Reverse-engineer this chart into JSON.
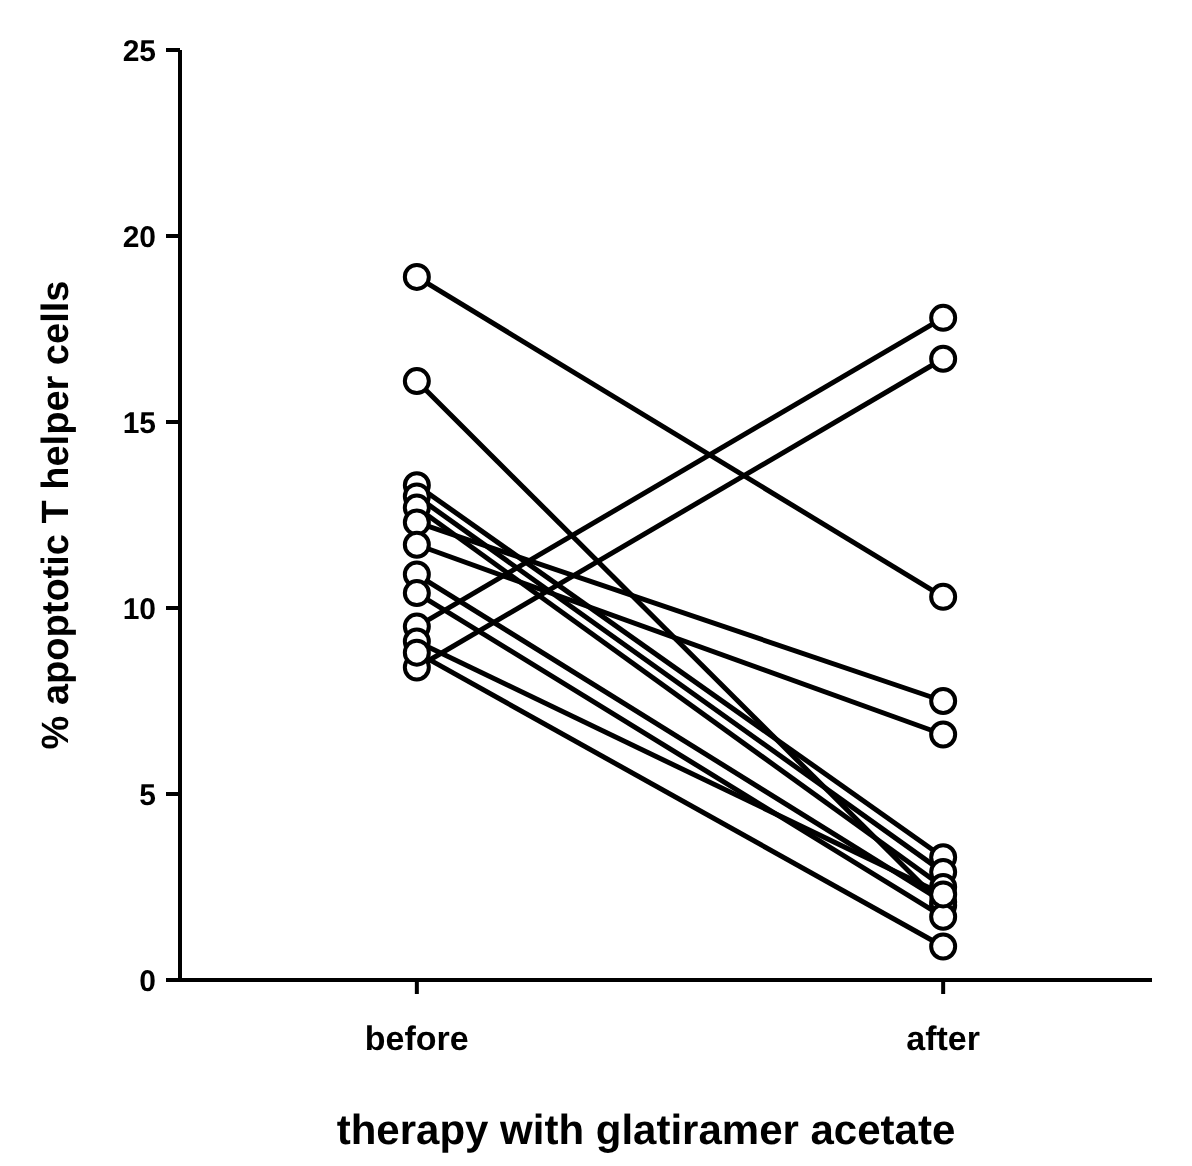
{
  "chart_data": {
    "type": "line",
    "xlabel": "therapy with glatiramer acetate",
    "ylabel": "% apoptotic T helper cells",
    "categories": [
      "before",
      "after"
    ],
    "ylim": [
      0,
      25
    ],
    "yticks": [
      0,
      5,
      10,
      15,
      20,
      25
    ],
    "grid": false,
    "marker": "circle",
    "line_style": "solid",
    "series": [
      {
        "color": "#000000",
        "values": [
          18.9,
          10.3
        ]
      },
      {
        "color": "#000000",
        "values": [
          16.1,
          2.0
        ]
      },
      {
        "color": "#000000",
        "values": [
          13.3,
          3.3
        ]
      },
      {
        "color": "#000000",
        "values": [
          13.0,
          2.9
        ]
      },
      {
        "color": "#000000",
        "values": [
          12.7,
          2.5
        ]
      },
      {
        "color": "#000000",
        "values": [
          12.3,
          7.5
        ]
      },
      {
        "color": "#000000",
        "values": [
          11.7,
          6.6
        ]
      },
      {
        "color": "#000000",
        "values": [
          10.9,
          2.1
        ]
      },
      {
        "color": "#000000",
        "values": [
          10.4,
          1.7
        ]
      },
      {
        "color": "#000000",
        "values": [
          9.5,
          17.8
        ]
      },
      {
        "color": "#000000",
        "values": [
          9.1,
          2.3
        ]
      },
      {
        "color": "#000000",
        "values": [
          8.4,
          16.7
        ]
      },
      {
        "color": "#000000",
        "values": [
          8.8,
          0.9
        ]
      }
    ]
  }
}
